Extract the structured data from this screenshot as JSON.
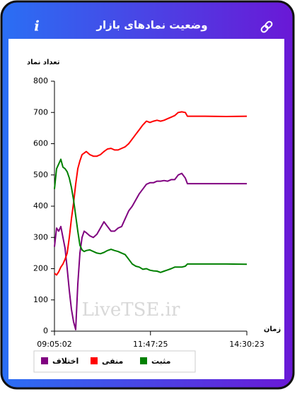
{
  "header": {
    "title": "وضعیت نمادهای بازار",
    "info_icon": "i"
  },
  "chart_data": {
    "type": "line",
    "y_label": "تعداد نماد",
    "x_label": "زمان",
    "watermark": "LiveTSE.ir",
    "x": [
      "09:05:02",
      "09:08:37",
      "09:12:13",
      "09:15:48",
      "09:19:23",
      "09:22:59",
      "09:26:34",
      "09:30:09",
      "09:33:44",
      "09:37:20",
      "09:40:55",
      "09:44:30",
      "09:48:06",
      "09:51:41",
      "09:55:16",
      "09:58:52",
      "10:04:51",
      "10:10:49",
      "10:16:48",
      "10:22:47",
      "10:28:46",
      "10:34:45",
      "10:40:44",
      "10:46:42",
      "10:52:41",
      "10:58:40",
      "11:04:39",
      "11:10:38",
      "11:16:37",
      "11:22:36",
      "11:28:34",
      "11:34:33",
      "11:40:32",
      "11:46:31",
      "11:52:30",
      "11:58:29",
      "12:04:28",
      "12:10:26",
      "12:16:25",
      "12:22:24",
      "12:28:23",
      "12:34:22",
      "12:40:21",
      "12:46:19",
      "12:49:55",
      "12:53:54",
      "13:19:49",
      "13:55:42",
      "14:30:23"
    ],
    "series": [
      {
        "name": "اختلاف",
        "color": "#800080",
        "values": [
          270,
          330,
          320,
          335,
          300,
          265,
          200,
          130,
          70,
          30,
          5,
          150,
          250,
          300,
          320,
          315,
          305,
          300,
          310,
          330,
          350,
          335,
          320,
          320,
          330,
          335,
          360,
          385,
          400,
          420,
          440,
          455,
          470,
          475,
          475,
          480,
          480,
          482,
          480,
          485,
          485,
          500,
          505,
          490,
          472,
          472,
          472,
          472,
          472
        ]
      },
      {
        "name": "منفی",
        "color": "#ff0000",
        "values": [
          185,
          180,
          190,
          205,
          215,
          230,
          250,
          300,
          360,
          410,
          470,
          520,
          545,
          565,
          570,
          575,
          565,
          560,
          560,
          565,
          575,
          583,
          585,
          580,
          580,
          585,
          590,
          600,
          615,
          630,
          645,
          660,
          672,
          668,
          672,
          675,
          672,
          675,
          680,
          685,
          690,
          700,
          702,
          700,
          688,
          688,
          688,
          687,
          688
        ]
      },
      {
        "name": "مثبت",
        "color": "#008000",
        "values": [
          455,
          520,
          535,
          550,
          525,
          520,
          510,
          490,
          460,
          420,
          370,
          320,
          275,
          260,
          255,
          258,
          260,
          255,
          250,
          248,
          252,
          258,
          262,
          258,
          255,
          250,
          245,
          230,
          215,
          208,
          205,
          198,
          200,
          195,
          193,
          192,
          188,
          192,
          196,
          200,
          205,
          205,
          205,
          208,
          215,
          215,
          215,
          215,
          214
        ]
      }
    ],
    "xlim": [
      "09:05:02",
      "14:30:23"
    ],
    "xticks": [
      "09:05:02",
      "11:47:25",
      "14:30:23"
    ],
    "ylim": [
      0,
      800
    ],
    "yticks": [
      0,
      100,
      200,
      300,
      400,
      500,
      600,
      700,
      800
    ],
    "grid": false
  }
}
